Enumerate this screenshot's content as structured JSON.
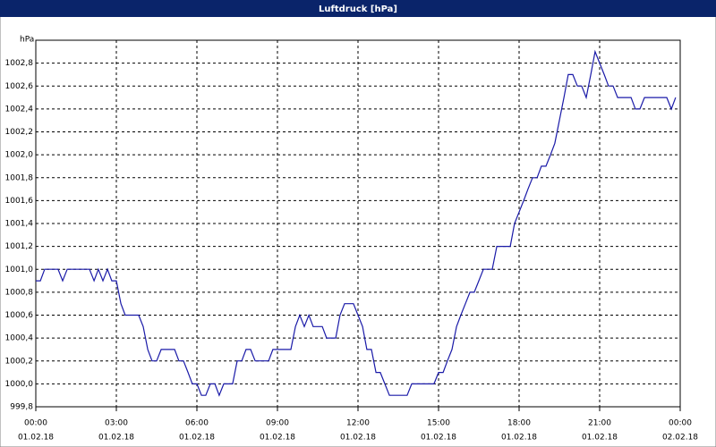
{
  "chart_data": {
    "type": "line",
    "title": "Luftdruck [hPa]",
    "y_label": "hPa",
    "series": [
      {
        "color": "#1a1aa8",
        "x": [
          0,
          0.17,
          0.33,
          0.83,
          1,
          1.17,
          2,
          2.17,
          2.33,
          2.5,
          2.67,
          2.83,
          3,
          3.17,
          3.33,
          3.83,
          4,
          4.17,
          4.33,
          4.5,
          4.67,
          5.17,
          5.33,
          5.5,
          5.67,
          5.83,
          6,
          6.17,
          6.33,
          6.5,
          6.67,
          6.83,
          7,
          7.33,
          7.5,
          7.67,
          7.83,
          8,
          8.17,
          8.67,
          8.83,
          9.5,
          9.67,
          9.83,
          10,
          10.17,
          10.33,
          10.67,
          10.83,
          11.17,
          11.33,
          11.5,
          11.83,
          12,
          12.17,
          12.33,
          12.5,
          12.67,
          12.83,
          13,
          13.17,
          13.83,
          14,
          14.83,
          15,
          15.17,
          15.33,
          15.5,
          15.67,
          15.83,
          16,
          16.17,
          16.33,
          16.5,
          16.67,
          17,
          17.17,
          17.67,
          17.83,
          18,
          18.17,
          18.33,
          18.5,
          18.67,
          18.83,
          19,
          19.17,
          19.33,
          19.5,
          19.67,
          19.83,
          20,
          20.17,
          20.33,
          20.5,
          20.67,
          20.83,
          21,
          21.17,
          21.33,
          21.5,
          21.67,
          22.17,
          22.33,
          22.5,
          22.67,
          23.5,
          23.67,
          23.83
        ],
        "values": [
          1000.9,
          1000.9,
          1001.0,
          1001.0,
          1000.9,
          1001.0,
          1001.0,
          1000.9,
          1001.0,
          1000.9,
          1001.0,
          1000.9,
          1000.9,
          1000.7,
          1000.6,
          1000.6,
          1000.5,
          1000.3,
          1000.2,
          1000.2,
          1000.3,
          1000.3,
          1000.2,
          1000.2,
          1000.1,
          1000.0,
          1000.0,
          999.9,
          999.9,
          1000.0,
          1000.0,
          999.9,
          1000.0,
          1000.0,
          1000.2,
          1000.2,
          1000.3,
          1000.3,
          1000.2,
          1000.2,
          1000.3,
          1000.3,
          1000.5,
          1000.6,
          1000.5,
          1000.6,
          1000.5,
          1000.5,
          1000.4,
          1000.4,
          1000.6,
          1000.7,
          1000.7,
          1000.6,
          1000.5,
          1000.3,
          1000.3,
          1000.1,
          1000.1,
          1000.0,
          999.9,
          999.9,
          1000.0,
          1000.0,
          1000.1,
          1000.1,
          1000.2,
          1000.3,
          1000.5,
          1000.6,
          1000.7,
          1000.8,
          1000.8,
          1000.9,
          1001.0,
          1001.0,
          1001.2,
          1001.2,
          1001.4,
          1001.5,
          1001.6,
          1001.7,
          1001.8,
          1001.8,
          1001.9,
          1001.9,
          1002.0,
          1002.1,
          1002.3,
          1002.5,
          1002.7,
          1002.7,
          1002.6,
          1002.6,
          1002.5,
          1002.7,
          1002.9,
          1002.8,
          1002.7,
          1002.6,
          1002.6,
          1002.5,
          1002.5,
          1002.4,
          1002.4,
          1002.5,
          1002.5,
          1002.4,
          1002.5
        ]
      }
    ],
    "xlim": [
      0,
      24
    ],
    "xticks": [
      {
        "value": 0,
        "label": "00:00"
      },
      {
        "value": 3,
        "label": "03:00"
      },
      {
        "value": 6,
        "label": "06:00"
      },
      {
        "value": 9,
        "label": "09:00"
      },
      {
        "value": 12,
        "label": "12:00"
      },
      {
        "value": 15,
        "label": "15:00"
      },
      {
        "value": 18,
        "label": "18:00"
      },
      {
        "value": 21,
        "label": "21:00"
      },
      {
        "value": 24,
        "label": "00:00"
      }
    ],
    "xtick_dates": [
      "01.02.18",
      "01.02.18",
      "01.02.18",
      "01.02.18",
      "01.02.18",
      "01.02.18",
      "01.02.18",
      "01.02.18",
      "02.02.18"
    ],
    "ylim": [
      999.8,
      1003.0
    ],
    "yticks": [
      {
        "value": 999.8,
        "label": "999,8"
      },
      {
        "value": 1000.0,
        "label": "1000,0"
      },
      {
        "value": 1000.2,
        "label": "1000,2"
      },
      {
        "value": 1000.4,
        "label": "1000,4"
      },
      {
        "value": 1000.6,
        "label": "1000,6"
      },
      {
        "value": 1000.8,
        "label": "1000,8"
      },
      {
        "value": 1001.0,
        "label": "1001,0"
      },
      {
        "value": 1001.2,
        "label": "1001,2"
      },
      {
        "value": 1001.4,
        "label": "1001,4"
      },
      {
        "value": 1001.6,
        "label": "1001,6"
      },
      {
        "value": 1001.8,
        "label": "1001,8"
      },
      {
        "value": 1002.0,
        "label": "1002,0"
      },
      {
        "value": 1002.2,
        "label": "1002,2"
      },
      {
        "value": 1002.4,
        "label": "1002,4"
      },
      {
        "value": 1002.6,
        "label": "1002,6"
      },
      {
        "value": 1002.8,
        "label": "1002,8"
      }
    ],
    "grid": true
  }
}
